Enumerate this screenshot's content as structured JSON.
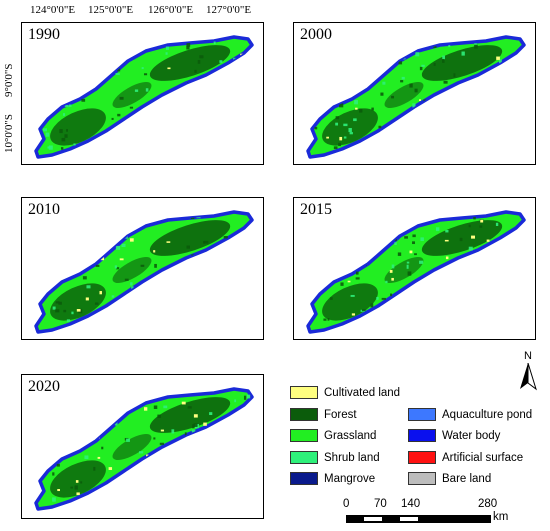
{
  "coordinates": {
    "longitude": [
      "124°0'0\"E",
      "125°0'0\"E",
      "126°0'0\"E",
      "127°0'0\"E"
    ],
    "latitude": [
      "9°0'0\"S",
      "10°0'0\"S"
    ]
  },
  "panels": [
    {
      "year": "1990"
    },
    {
      "year": "2000"
    },
    {
      "year": "2010"
    },
    {
      "year": "2015"
    },
    {
      "year": "2020"
    }
  ],
  "legend": {
    "left": [
      {
        "label": "Cultivated land",
        "color": "#ffff80"
      },
      {
        "label": "Forest",
        "color": "#0b5c0b"
      },
      {
        "label": "Grassland",
        "color": "#22ee22"
      },
      {
        "label": "Shrub land",
        "color": "#2ef07a"
      },
      {
        "label": "Mangrove",
        "color": "#0a1a8c"
      }
    ],
    "right": [
      {
        "label": "Aquaculture pond",
        "color": "#3d78ff"
      },
      {
        "label": "Water body",
        "color": "#0a10ee"
      },
      {
        "label": "Artificial surface",
        "color": "#ff1111"
      },
      {
        "label": "Bare land",
        "color": "#bdbdbd"
      }
    ]
  },
  "north_arrow": {
    "label": "N"
  },
  "scale_bar": {
    "ticks": [
      "0",
      "70",
      "140",
      "280"
    ],
    "unit": "km"
  },
  "colors": {
    "grass": "#22ee22",
    "forest": "#0b5c0b",
    "shrub": "#2ef07a",
    "coast": "#1a2ad8",
    "cultivated": "#ffff80"
  }
}
